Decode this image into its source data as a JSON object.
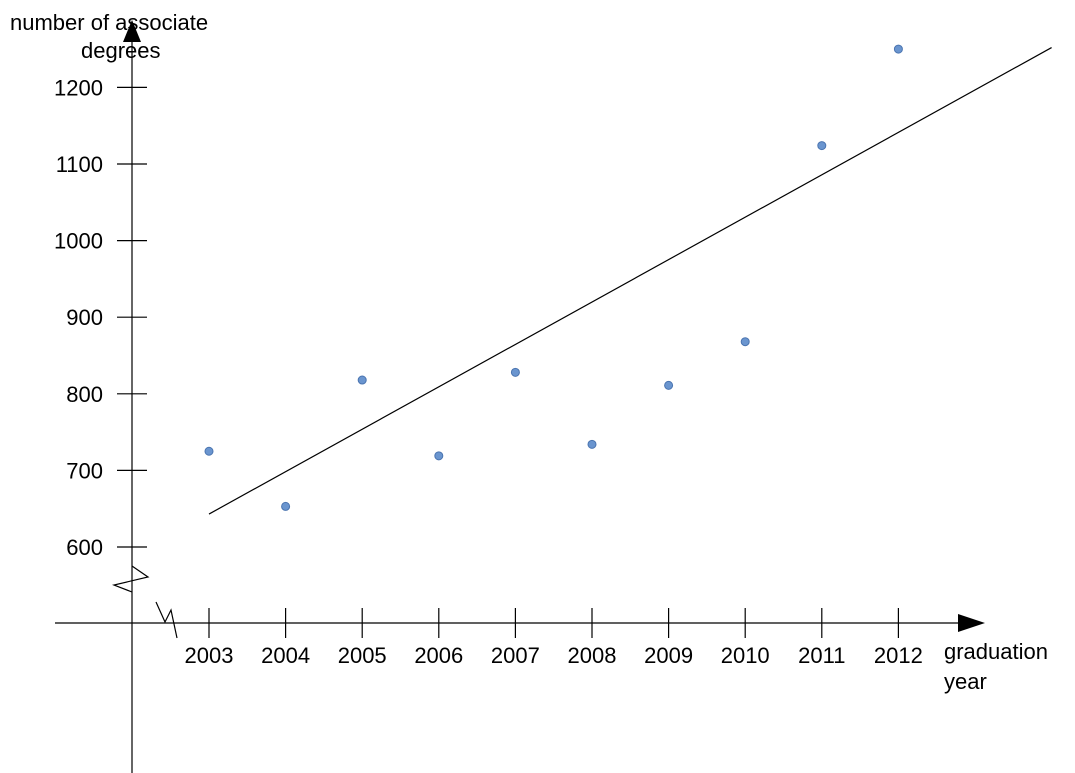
{
  "chart_data": {
    "type": "scatter",
    "ylabel": "number of associate degrees",
    "xlabel": "graduation year",
    "ylabel_lines": [
      "number of associate",
      "degrees"
    ],
    "xlabel_lines": [
      "graduation",
      "year"
    ],
    "x_ticks": [
      "2003",
      "2004",
      "2005",
      "2006",
      "2007",
      "2008",
      "2009",
      "2010",
      "2011",
      "2012"
    ],
    "y_ticks": [
      "600",
      "700",
      "800",
      "900",
      "1000",
      "1100",
      "1200"
    ],
    "ylim": [
      600,
      1200
    ],
    "xlim": [
      2003,
      2012
    ],
    "axis_breaks": true,
    "grid": false,
    "points": [
      {
        "x": 2003,
        "y": 725
      },
      {
        "x": 2004,
        "y": 653
      },
      {
        "x": 2005,
        "y": 818
      },
      {
        "x": 2006,
        "y": 719
      },
      {
        "x": 2007,
        "y": 828
      },
      {
        "x": 2008,
        "y": 734
      },
      {
        "x": 2009,
        "y": 811
      },
      {
        "x": 2010,
        "y": 868
      },
      {
        "x": 2011,
        "y": 1124
      },
      {
        "x": 2012,
        "y": 1250
      }
    ],
    "trend_line": {
      "x_start": 2003,
      "y_start": 643,
      "x_end": 2014.0,
      "y_end": 1252
    },
    "colors": {
      "points": "#6a95cf",
      "axes": "#000000"
    }
  }
}
